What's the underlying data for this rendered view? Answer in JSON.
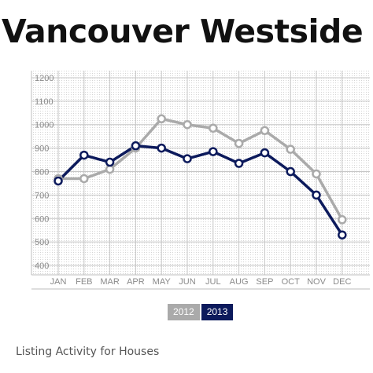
{
  "chart_data": {
    "type": "line",
    "title": "Vancouver Westside",
    "subtitle": "Listing Activity for Houses",
    "categories": [
      "JAN",
      "FEB",
      "MAR",
      "APR",
      "MAY",
      "JUN",
      "JUL",
      "AUG",
      "SEP",
      "OCT",
      "NOV",
      "DEC"
    ],
    "y_ticks": [
      1200,
      1100,
      1000,
      900,
      800,
      700,
      600,
      500,
      400
    ],
    "ylim": [
      360,
      1230
    ],
    "grid": true,
    "legend_position": "bottom-center",
    "series": [
      {
        "name": "2012",
        "color": "#aaaaaa",
        "values": [
          770,
          770,
          810,
          900,
          1025,
          1000,
          985,
          920,
          975,
          895,
          790,
          595
        ]
      },
      {
        "name": "2013",
        "color": "#0c1a5c",
        "values": [
          760,
          870,
          840,
          910,
          900,
          855,
          885,
          835,
          880,
          800,
          700,
          530
        ]
      }
    ]
  }
}
